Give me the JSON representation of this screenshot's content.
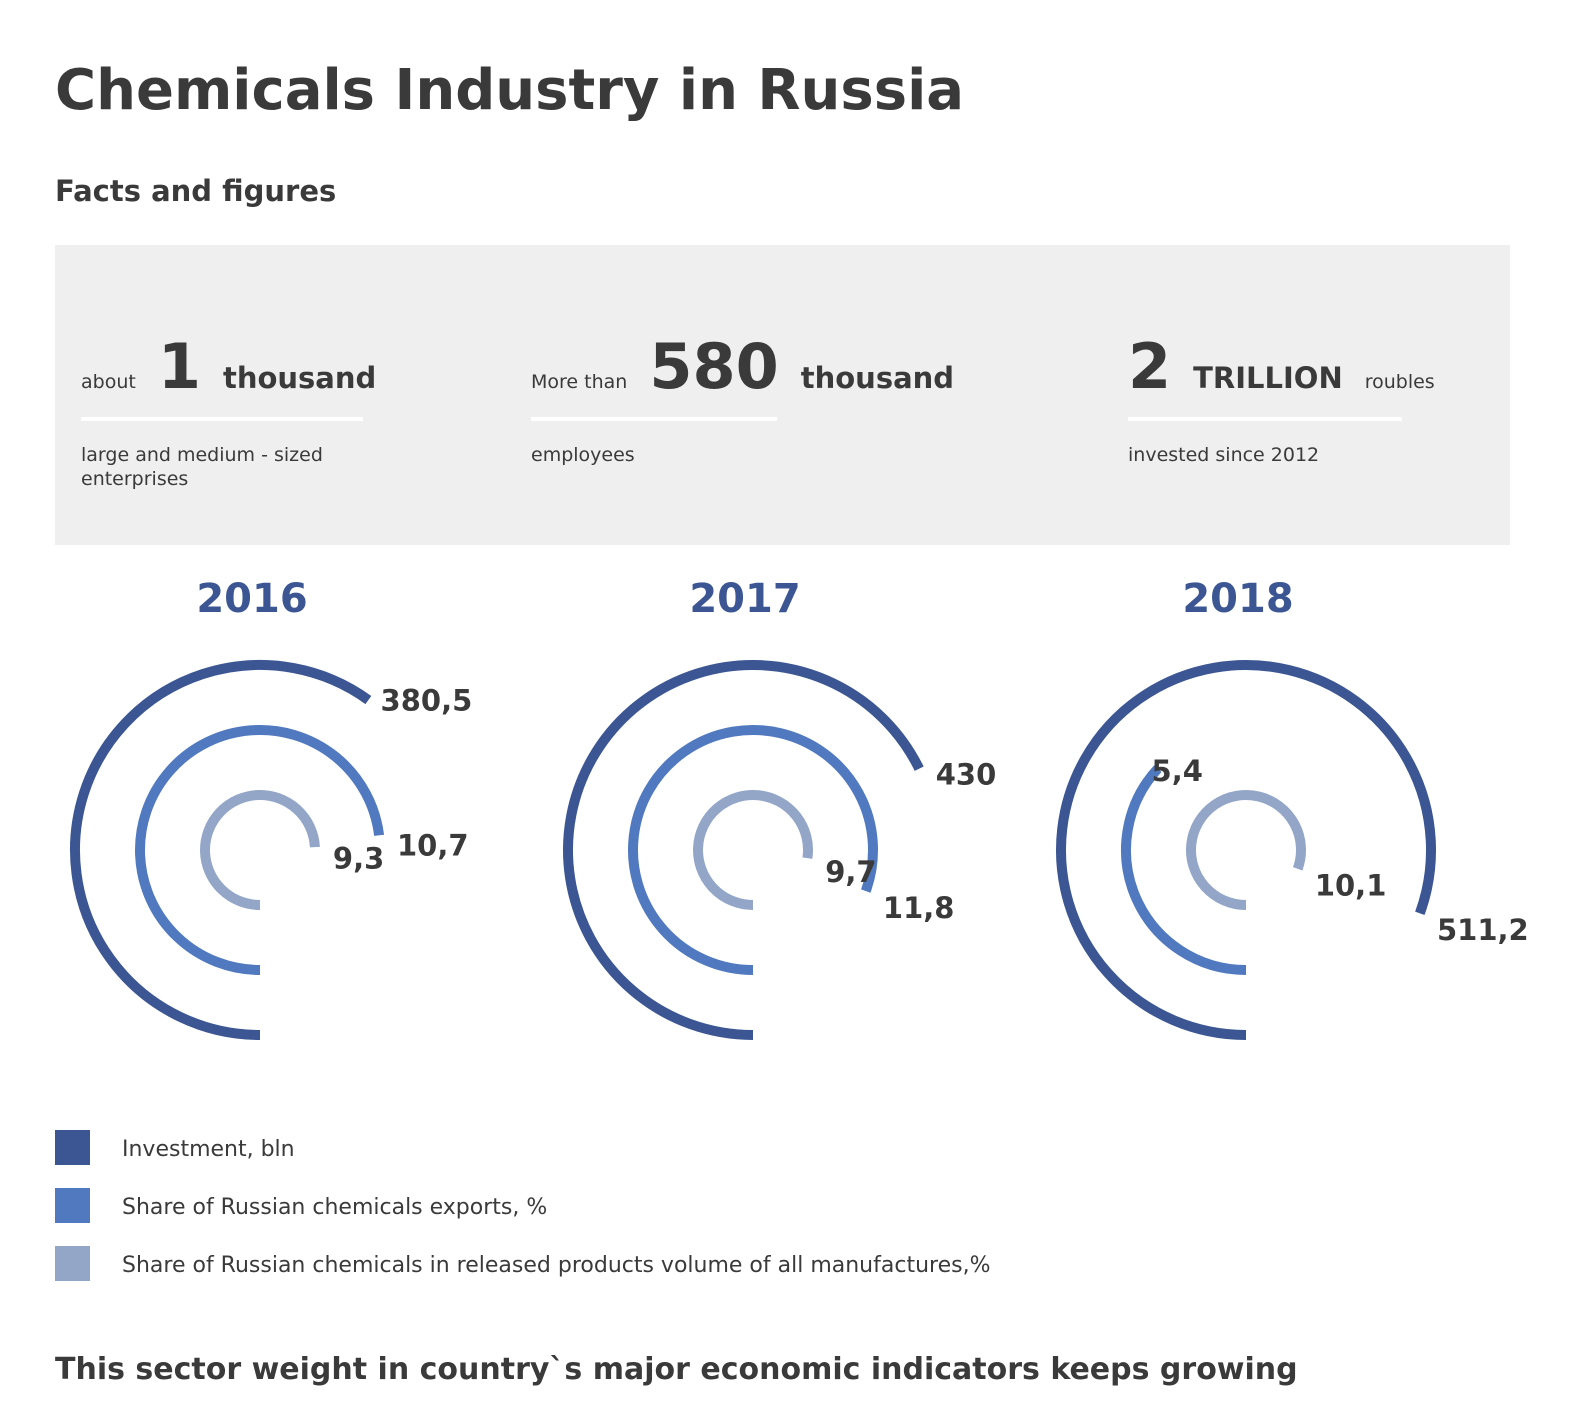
{
  "title": "Chemicals Industry in Russia",
  "subtitle": "Facts and figures",
  "facts": [
    {
      "prefix": "about",
      "number": 1,
      "unit": "thousand",
      "note": "large and medium - sized enterprises"
    },
    {
      "prefix": "More than",
      "number": 580,
      "unit": "thousand",
      "note": "employees"
    },
    {
      "number": 2,
      "unit": "TRILLION",
      "suffix": "roubles",
      "note": "invested since 2012"
    }
  ],
  "chart_data": {
    "type": "radial",
    "categories": [
      "2016",
      "2017",
      "2018"
    ],
    "series": [
      {
        "name": "Investment, bln",
        "color": "#3b5693",
        "values": [
          380.5,
          430,
          511.2
        ],
        "value_labels": [
          "380,5",
          "430",
          "511,2"
        ]
      },
      {
        "name": "Share of Russian chemicals exports, %",
        "color": "#5079bf",
        "values": [
          10.7,
          11.8,
          5.4
        ],
        "value_labels": [
          "10,7",
          "11,8",
          "5,4"
        ]
      },
      {
        "name": "Share of Russian chemicals in released products volume of all manufactures,%",
        "color": "#93a6c8",
        "values": [
          9.3,
          9.7,
          10.1
        ],
        "value_labels": [
          "9,3",
          "9,7",
          "10,1"
        ]
      }
    ]
  },
  "footer": "This sector weight in country`s  major  economic indicators keeps growing"
}
